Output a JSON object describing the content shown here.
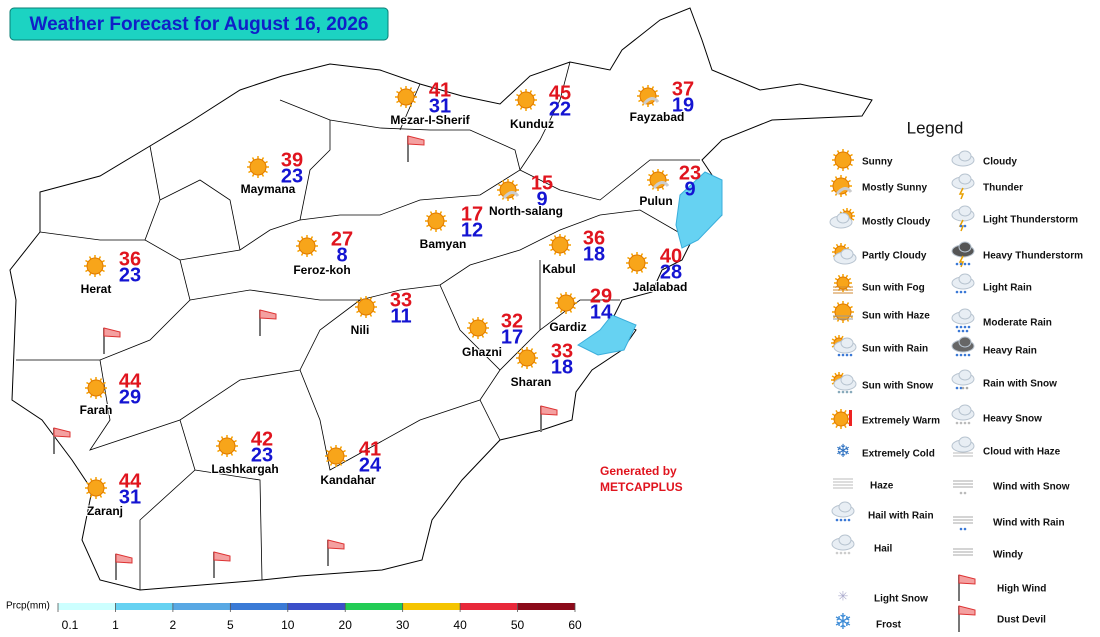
{
  "header": {
    "title": "Weather Forecast for August 16, 2026"
  },
  "cities": [
    {
      "name": "Mezar-I-Sherif",
      "max": 41,
      "min": 31
    },
    {
      "name": "Kunduz",
      "max": 45,
      "min": 22
    },
    {
      "name": "Fayzabad",
      "max": 37,
      "min": 19
    },
    {
      "name": "Maymana",
      "max": 39,
      "min": 23
    },
    {
      "name": "North-salang",
      "max": 15,
      "min": 9
    },
    {
      "name": "Pulun",
      "max": 23,
      "min": 9
    },
    {
      "name": "Bamyan",
      "max": 17,
      "min": 12
    },
    {
      "name": "Feroz-koh",
      "max": 27,
      "min": 8
    },
    {
      "name": "Herat",
      "max": 36,
      "min": 23
    },
    {
      "name": "Kabul",
      "max": 36,
      "min": 18
    },
    {
      "name": "Jalalabad",
      "max": 40,
      "min": 28
    },
    {
      "name": "Nili",
      "max": 33,
      "min": 11
    },
    {
      "name": "Gardiz",
      "max": 29,
      "min": 14
    },
    {
      "name": "Ghazni",
      "max": 32,
      "min": 17
    },
    {
      "name": "Sharan",
      "max": 33,
      "min": 18
    },
    {
      "name": "Farah",
      "max": 44,
      "min": 29
    },
    {
      "name": "Lashkargah",
      "max": 42,
      "min": 23
    },
    {
      "name": "Kandahar",
      "max": 41,
      "min": 24
    },
    {
      "name": "Zaranj",
      "max": 44,
      "min": 31
    }
  ],
  "legend": {
    "title": "Legend",
    "items": [
      "Sunny",
      "Mostly Sunny",
      "Mostly Cloudy",
      "Partly Cloudy",
      "Sun with Fog",
      "Sun with Haze",
      "Sun with Rain",
      "Sun with Snow",
      "Extremely Warm",
      "Extremely Cold",
      "Haze",
      "Hail with Rain",
      "Hail",
      "Light Snow",
      "Frost",
      "Cloudy",
      "Thunder",
      "Light Thunderstorm",
      "Heavy Thunderstorm",
      "Light Rain",
      "Moderate Rain",
      "Heavy Rain",
      "Rain with Snow",
      "Heavy Snow",
      "Cloud with Haze",
      "Wind with Snow",
      "Wind with Rain",
      "Windy",
      "High Wind",
      "Dust Devil"
    ]
  },
  "credit": {
    "line1": "Generated by",
    "line2": "METCAPPLUS"
  },
  "precip_scale": {
    "label": "Prcp(mm)",
    "ticks": [
      0.1,
      1,
      2,
      5,
      10,
      20,
      30,
      40,
      50,
      60
    ],
    "colors": [
      "#ccffff",
      "#66d2f2",
      "#58a8e4",
      "#3a7ad6",
      "#3b4fc9",
      "#22cc55",
      "#f5c400",
      "#e8283a",
      "#8b0a1a"
    ]
  }
}
